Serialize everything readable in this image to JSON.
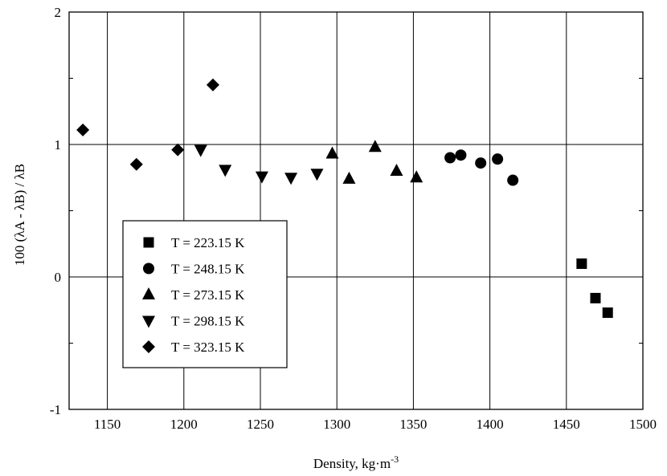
{
  "chart_data": {
    "type": "scatter",
    "title": "",
    "xlabel": "Density, kg·m",
    "xlabel_superscript": "-3",
    "ylabel": "100 (λA - λB) / λB",
    "xlim": [
      1125,
      1500
    ],
    "ylim": [
      -1,
      2
    ],
    "x_ticks": [
      1150,
      1200,
      1250,
      1300,
      1350,
      1400,
      1450,
      1500
    ],
    "y_ticks": [
      -1,
      0,
      1,
      2
    ],
    "x_tick_labels": [
      "1150",
      "1200",
      "1250",
      "1300",
      "1350",
      "1400",
      "1450",
      "1500"
    ],
    "y_tick_labels": [
      "-1",
      "0",
      "1",
      "2"
    ],
    "grid": true,
    "legend_position": "lower-left",
    "series": [
      {
        "name": "T = 223.15 K",
        "marker": "square",
        "points": [
          [
            1460,
            0.1
          ],
          [
            1469,
            -0.16
          ],
          [
            1477,
            -0.27
          ]
        ]
      },
      {
        "name": "T = 248.15 K",
        "marker": "circle",
        "points": [
          [
            1374,
            0.9
          ],
          [
            1381,
            0.92
          ],
          [
            1394,
            0.86
          ],
          [
            1405,
            0.89
          ],
          [
            1415,
            0.73
          ]
        ]
      },
      {
        "name": "T = 273.15 K",
        "marker": "triangle-up",
        "points": [
          [
            1297,
            0.93
          ],
          [
            1308,
            0.74
          ],
          [
            1325,
            0.98
          ],
          [
            1339,
            0.8
          ],
          [
            1352,
            0.75
          ]
        ]
      },
      {
        "name": "T = 298.15 K",
        "marker": "triangle-down",
        "points": [
          [
            1211,
            0.96
          ],
          [
            1227,
            0.81
          ],
          [
            1251,
            0.76
          ],
          [
            1270,
            0.75
          ],
          [
            1287,
            0.78
          ]
        ]
      },
      {
        "name": "T = 323.15 K",
        "marker": "diamond",
        "points": [
          [
            1134,
            1.11
          ],
          [
            1169,
            0.85
          ],
          [
            1196,
            0.96
          ],
          [
            1219,
            1.45
          ]
        ]
      }
    ]
  }
}
